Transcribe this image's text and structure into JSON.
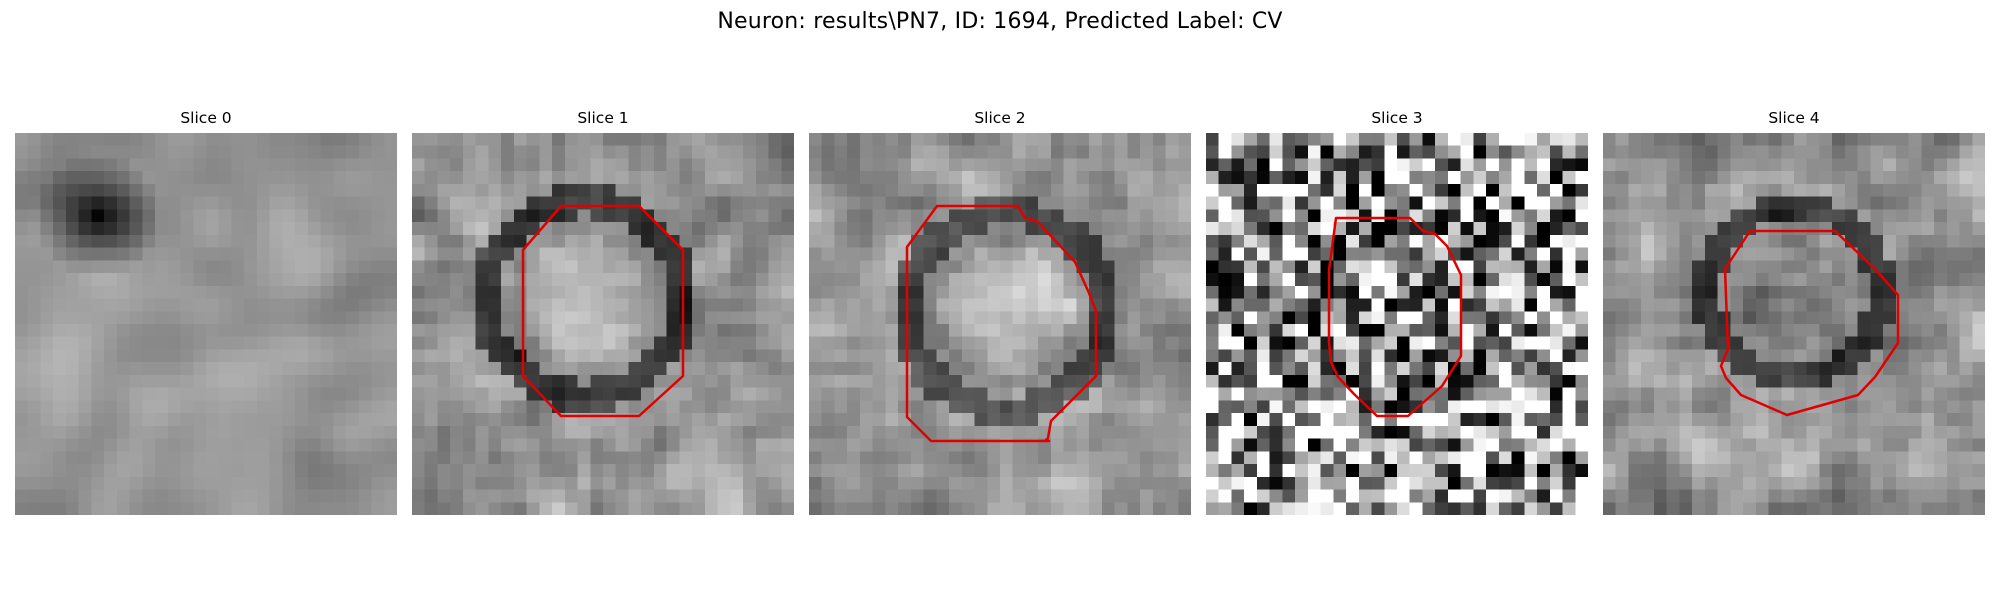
{
  "figure": {
    "title": "Neuron: results\\PN7, ID: 1694, Predicted Label: CV"
  },
  "panels": [
    {
      "title": "Slice 0",
      "has_contour": false
    },
    {
      "title": "Slice 1",
      "has_contour": true
    },
    {
      "title": "Slice 2",
      "has_contour": true
    },
    {
      "title": "Slice 3",
      "has_contour": true
    },
    {
      "title": "Slice 4",
      "has_contour": true
    }
  ],
  "colors": {
    "contour": "#e00000",
    "background": "#ffffff",
    "colormap": "gray"
  }
}
